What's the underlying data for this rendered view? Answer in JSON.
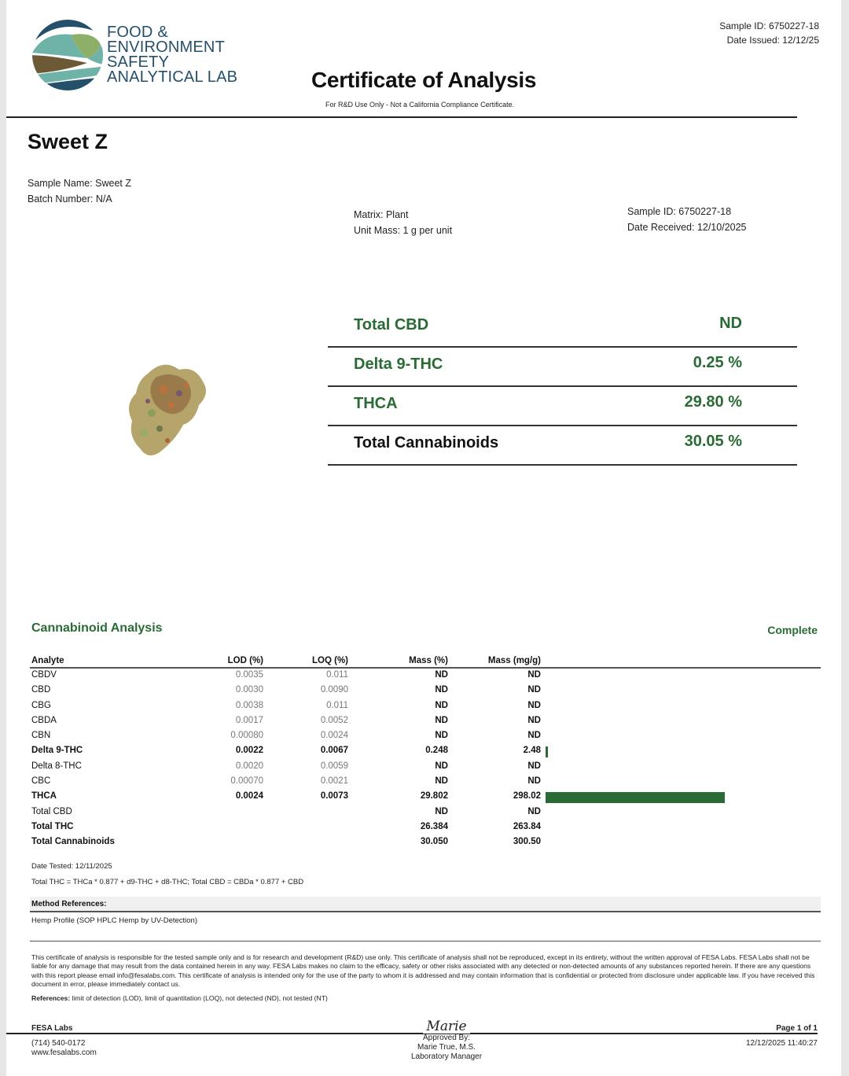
{
  "lab": {
    "name_lines": [
      "FOOD &",
      "ENVIRONMENT",
      "SAFETY",
      "ANALYTICAL LAB"
    ],
    "logo_icon": "fesa-logo-icon",
    "colors": {
      "navy": "#24506b",
      "teal": "#6fb3a8",
      "green": "#8cb06a",
      "brown": "#6b5a35"
    }
  },
  "header": {
    "sample_id": "Sample ID: 6750227-18",
    "date_issued": "Date Issued: 12/12/25",
    "title": "Certificate of Analysis",
    "subtitle": "For R&D Use Only - Not a California Compliance Certificate."
  },
  "product": {
    "name": "Sweet Z",
    "sample_name": "Sample Name: Sweet Z",
    "batch_number": "Batch Number: N/A",
    "matrix": "Matrix: Plant",
    "unit_mass": "Unit Mass: 1 g per unit",
    "sample_id": "Sample ID: 6750227-18",
    "date_received": "Date Received: 12/10/2025",
    "image_icon": "cannabis-bud-image"
  },
  "summary": [
    {
      "label": "Total CBD",
      "value": "ND"
    },
    {
      "label": "Delta 9-THC",
      "value": "0.25 %"
    },
    {
      "label": "THCA",
      "value": "29.80 %"
    },
    {
      "label": "Total Cannabinoids",
      "value": "30.05 %"
    }
  ],
  "analysis": {
    "title": "Cannabinoid Analysis",
    "status": "Complete",
    "accent_color": "#2a6b35",
    "columns": [
      "Analyte",
      "LOD (%)",
      "LOQ (%)",
      "Mass (%)",
      "Mass (mg/g)"
    ],
    "rows": [
      {
        "analyte": "CBDV",
        "lod": "0.0035",
        "loq": "0.011",
        "mass_pct": "ND",
        "mass_mg": "ND",
        "bold": false
      },
      {
        "analyte": "CBD",
        "lod": "0.0030",
        "loq": "0.0090",
        "mass_pct": "ND",
        "mass_mg": "ND",
        "bold": false
      },
      {
        "analyte": "CBG",
        "lod": "0.0038",
        "loq": "0.011",
        "mass_pct": "ND",
        "mass_mg": "ND",
        "bold": false
      },
      {
        "analyte": "CBDA",
        "lod": "0.0017",
        "loq": "0.0052",
        "mass_pct": "ND",
        "mass_mg": "ND",
        "bold": false
      },
      {
        "analyte": "CBN",
        "lod": "0.00080",
        "loq": "0.0024",
        "mass_pct": "ND",
        "mass_mg": "ND",
        "bold": false
      },
      {
        "analyte": "Delta 9-THC",
        "lod": "0.0022",
        "loq": "0.0067",
        "mass_pct": "0.248",
        "mass_mg": "2.48",
        "bold": true
      },
      {
        "analyte": "Delta 8-THC",
        "lod": "0.0020",
        "loq": "0.0059",
        "mass_pct": "ND",
        "mass_mg": "ND",
        "bold": false
      },
      {
        "analyte": "CBC",
        "lod": "0.00070",
        "loq": "0.0021",
        "mass_pct": "ND",
        "mass_mg": "ND",
        "bold": false
      },
      {
        "analyte": "THCA",
        "lod": "0.0024",
        "loq": "0.0073",
        "mass_pct": "29.802",
        "mass_mg": "298.02",
        "bold": true
      },
      {
        "analyte": "Total CBD",
        "lod": "",
        "loq": "",
        "mass_pct": "ND",
        "mass_mg": "ND",
        "bold": false
      },
      {
        "analyte": "Total THC",
        "lod": "",
        "loq": "",
        "mass_pct": "26.384",
        "mass_mg": "263.84",
        "bold": true
      },
      {
        "analyte": "Total Cannabinoids",
        "lod": "",
        "loq": "",
        "mass_pct": "30.050",
        "mass_mg": "300.50",
        "bold": true
      }
    ],
    "date_tested": "Date Tested: 12/11/2025",
    "formula": "Total THC = THCa * 0.877 + d9-THC + d8-THC; Total CBD = CBDa * 0.877 + CBD",
    "method_header": "Method References:",
    "method": "Hemp Profile (SOP HPLC Hemp by UV-Detection)"
  },
  "chart_data": {
    "type": "bar",
    "title": "Cannabinoid Analysis (inline bars)",
    "categories": [
      "Delta 9-THC",
      "THCA"
    ],
    "values": [
      2.48,
      298.02
    ],
    "xlabel": "",
    "ylabel": "Mass (mg/g)",
    "orientation": "horizontal"
  },
  "disclaimer": "This certificate of analysis is responsible for the tested sample only and is for research and development (R&D) use only. This certificate of analysis shall not be reproduced, except in its entirety, without the written approval of FESA Labs. FESA Labs shall not be liable for any damage that may result from the data contained herein in any way. FESA Labs makes no claim to the efficacy, safety or other risks associated with any detected or non-detected amounts of any substances reported herein. If there are any questions with this report please email info@fesalabs.com. This certificate of analysis is intended only for the use of the party to whom it is addressed and may contain information that is confidential or protected from disclosure under applicable law. If you have received this document in error, please immediately contact us.",
  "references": {
    "label": "References:",
    "text": " limit of detection (LOD), limit of quantitation (LOQ), not detected (ND), not tested (NT)"
  },
  "footer": {
    "company": "FESA Labs",
    "phone": "(714) 540-0172",
    "website": "www.fesalabs.com",
    "signature": "Marie",
    "approved_by": "Approved By:",
    "approver_name": "Marie True, M.S.",
    "approver_title": "Laboratory Manager",
    "page": "Page 1 of 1",
    "printed": "12/12/2025 11:40:27"
  }
}
